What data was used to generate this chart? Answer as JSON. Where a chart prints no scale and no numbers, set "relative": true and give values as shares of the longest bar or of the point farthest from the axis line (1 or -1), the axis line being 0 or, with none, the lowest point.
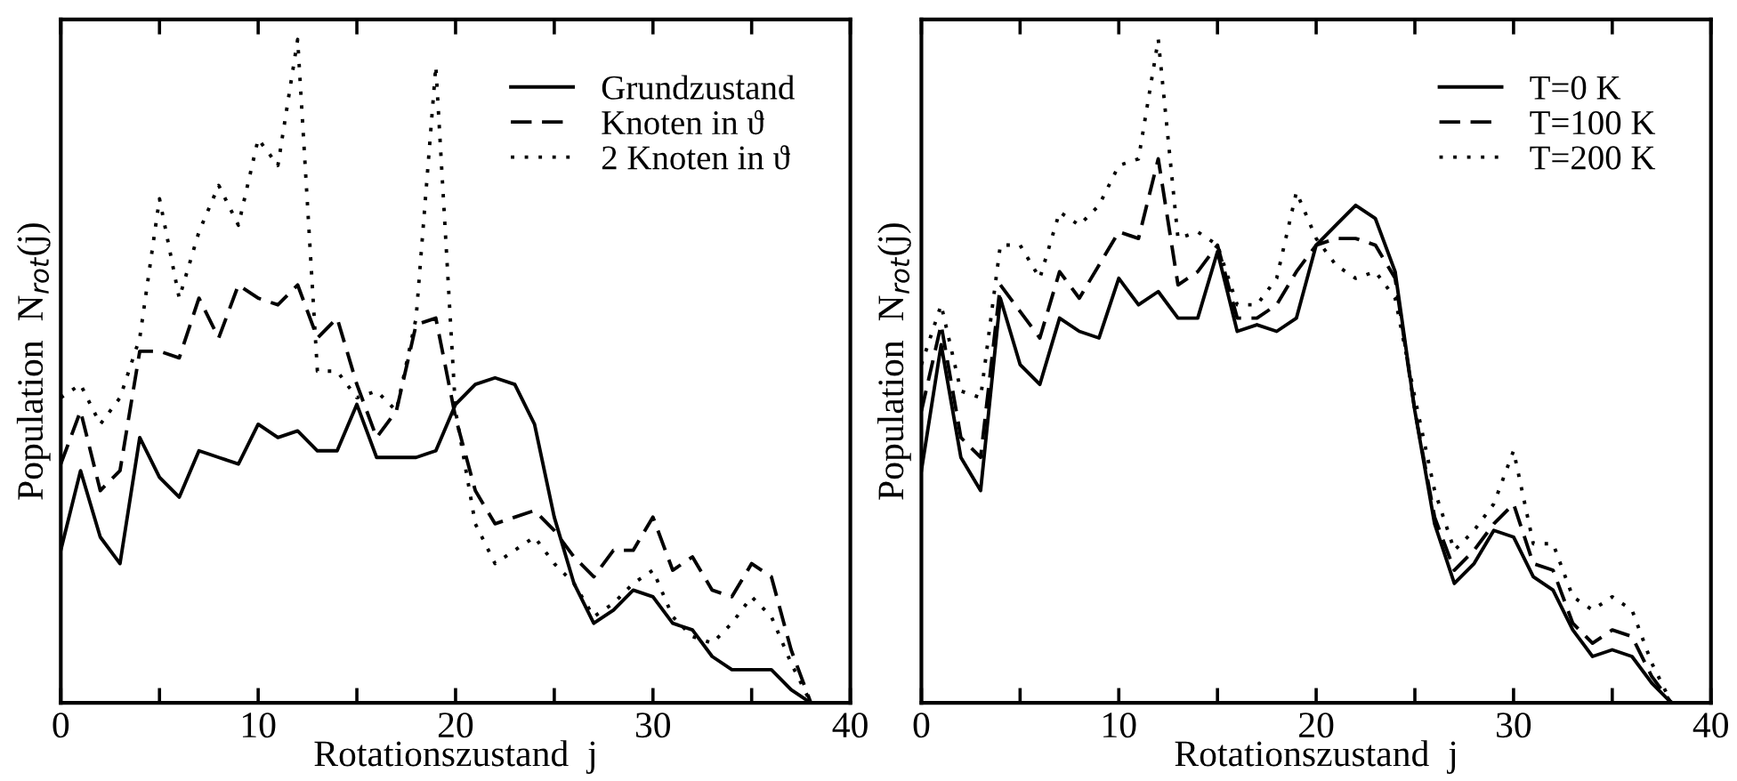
{
  "chart_data": [
    {
      "type": "line",
      "relative": true,
      "xlabel": "Rotationszustand  j",
      "ylabel": "Population  N$_{rot}$(j)",
      "xlim": [
        0,
        40
      ],
      "xticks": [
        0,
        {
          "value": 5,
          "label": null
        },
        10,
        {
          "value": 15,
          "label": null
        },
        20,
        {
          "value": 25,
          "label": null
        },
        30,
        {
          "value": 35,
          "label": null
        },
        40
      ],
      "legend": "top right",
      "grid": false,
      "series": [
        {
          "name": "Grundzustand",
          "color": "#000000",
          "line_style": "solid",
          "x": [
            0,
            1,
            2,
            3,
            4,
            5,
            6,
            7,
            8,
            9,
            10,
            11,
            12,
            13,
            14,
            15,
            16,
            17,
            18,
            19,
            20,
            21,
            22,
            23,
            24,
            25,
            26,
            27,
            28,
            29,
            30,
            31,
            32,
            33,
            34,
            35,
            36,
            37,
            38
          ],
          "values": [
            0.23,
            0.35,
            0.25,
            0.21,
            0.4,
            0.34,
            0.31,
            0.38,
            0.37,
            0.36,
            0.42,
            0.4,
            0.41,
            0.38,
            0.38,
            0.45,
            0.37,
            0.37,
            0.37,
            0.38,
            0.45,
            0.48,
            0.49,
            0.48,
            0.42,
            0.28,
            0.18,
            0.12,
            0.14,
            0.17,
            0.16,
            0.12,
            0.11,
            0.07,
            0.05,
            0.05,
            0.05,
            0.02,
            0.0
          ]
        },
        {
          "name": "Knoten in ϑ",
          "color": "#000000",
          "line_style": "dashed",
          "x": [
            0,
            1,
            2,
            3,
            4,
            5,
            6,
            7,
            8,
            9,
            10,
            11,
            12,
            13,
            14,
            15,
            16,
            17,
            18,
            19,
            20,
            21,
            22,
            23,
            24,
            25,
            26,
            27,
            28,
            29,
            30,
            31,
            32,
            33,
            34,
            35,
            36,
            37,
            38
          ],
          "values": [
            0.36,
            0.44,
            0.32,
            0.35,
            0.53,
            0.53,
            0.52,
            0.61,
            0.55,
            0.63,
            0.61,
            0.6,
            0.63,
            0.55,
            0.58,
            0.48,
            0.4,
            0.44,
            0.57,
            0.58,
            0.43,
            0.32,
            0.27,
            0.28,
            0.29,
            0.26,
            0.22,
            0.19,
            0.23,
            0.23,
            0.28,
            0.2,
            0.22,
            0.17,
            0.16,
            0.21,
            0.19,
            0.08,
            0.0
          ]
        },
        {
          "name": "2 Knoten in ϑ",
          "color": "#000000",
          "line_style": "dotted",
          "x": [
            0,
            1,
            2,
            3,
            4,
            5,
            6,
            7,
            8,
            9,
            10,
            11,
            12,
            13,
            14,
            15,
            16,
            17,
            18,
            19,
            20,
            21,
            22,
            23,
            24,
            25,
            26,
            27,
            28,
            29,
            30,
            31,
            32,
            33,
            34,
            35,
            36,
            37,
            38
          ],
          "values": [
            0.46,
            0.48,
            0.42,
            0.46,
            0.55,
            0.76,
            0.61,
            0.71,
            0.78,
            0.72,
            0.85,
            0.81,
            1.0,
            0.5,
            0.5,
            0.46,
            0.47,
            0.44,
            0.58,
            0.96,
            0.44,
            0.27,
            0.21,
            0.23,
            0.25,
            0.21,
            0.18,
            0.13,
            0.15,
            0.18,
            0.2,
            0.13,
            0.1,
            0.09,
            0.12,
            0.16,
            0.13,
            0.06,
            0.0
          ]
        }
      ]
    },
    {
      "type": "line",
      "relative": true,
      "xlabel": "Rotationszustand  j",
      "ylabel": "Population  N$_{rot}$(j)",
      "xlim": [
        0,
        40
      ],
      "xticks": [
        0,
        {
          "value": 5,
          "label": null
        },
        10,
        {
          "value": 15,
          "label": null
        },
        20,
        {
          "value": 25,
          "label": null
        },
        30,
        {
          "value": 35,
          "label": null
        },
        40
      ],
      "legend": "top right",
      "grid": false,
      "series": [
        {
          "name": "T=0 K",
          "color": "#000000",
          "line_style": "solid",
          "x": [
            0,
            1,
            2,
            3,
            4,
            5,
            6,
            7,
            8,
            9,
            10,
            11,
            12,
            13,
            14,
            15,
            16,
            17,
            18,
            19,
            20,
            21,
            22,
            23,
            24,
            25,
            26,
            27,
            28,
            29,
            30,
            31,
            32,
            33,
            34,
            35,
            36,
            37,
            38
          ],
          "values": [
            0.35,
            0.54,
            0.37,
            0.32,
            0.61,
            0.51,
            0.48,
            0.58,
            0.56,
            0.55,
            0.64,
            0.6,
            0.62,
            0.58,
            0.58,
            0.68,
            0.56,
            0.57,
            0.56,
            0.58,
            0.69,
            0.72,
            0.75,
            0.73,
            0.65,
            0.44,
            0.27,
            0.18,
            0.21,
            0.26,
            0.25,
            0.19,
            0.17,
            0.11,
            0.07,
            0.08,
            0.07,
            0.03,
            0.0
          ]
        },
        {
          "name": "T=100 K",
          "color": "#000000",
          "line_style": "dashed",
          "x": [
            0,
            1,
            2,
            3,
            4,
            5,
            6,
            7,
            8,
            9,
            10,
            11,
            12,
            13,
            14,
            15,
            16,
            17,
            18,
            19,
            20,
            21,
            22,
            23,
            24,
            25,
            26,
            27,
            28,
            29,
            30,
            31,
            32,
            33,
            34,
            35,
            36,
            37,
            38
          ],
          "values": [
            0.44,
            0.57,
            0.4,
            0.37,
            0.63,
            0.59,
            0.55,
            0.65,
            0.61,
            0.66,
            0.71,
            0.7,
            0.82,
            0.63,
            0.65,
            0.69,
            0.58,
            0.58,
            0.6,
            0.65,
            0.69,
            0.7,
            0.7,
            0.69,
            0.64,
            0.44,
            0.28,
            0.2,
            0.23,
            0.27,
            0.3,
            0.21,
            0.2,
            0.12,
            0.09,
            0.11,
            0.1,
            0.04,
            0.0
          ]
        },
        {
          "name": "T=200 K",
          "color": "#000000",
          "line_style": "dotted",
          "x": [
            0,
            1,
            2,
            3,
            4,
            5,
            6,
            7,
            8,
            9,
            10,
            11,
            12,
            13,
            14,
            15,
            16,
            17,
            18,
            19,
            20,
            21,
            22,
            23,
            24,
            25,
            26,
            27,
            28,
            29,
            30,
            31,
            32,
            33,
            34,
            35,
            36,
            37,
            38
          ],
          "values": [
            0.51,
            0.6,
            0.47,
            0.46,
            0.69,
            0.69,
            0.64,
            0.74,
            0.72,
            0.75,
            0.81,
            0.82,
            1.0,
            0.7,
            0.71,
            0.69,
            0.6,
            0.6,
            0.64,
            0.77,
            0.7,
            0.66,
            0.64,
            0.65,
            0.61,
            0.46,
            0.32,
            0.23,
            0.26,
            0.3,
            0.38,
            0.24,
            0.24,
            0.16,
            0.14,
            0.16,
            0.14,
            0.06,
            0.0
          ]
        }
      ]
    }
  ]
}
